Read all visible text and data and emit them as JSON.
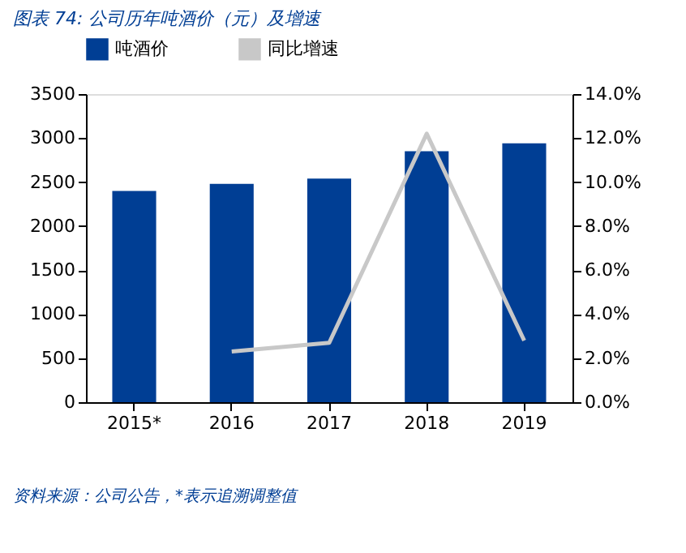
{
  "chart_data": {
    "type": "bar",
    "title": "图表 74: 公司历年吨酒价（元）及增速",
    "categories": [
      "2015*",
      "2016",
      "2017",
      "2018",
      "2019"
    ],
    "series": [
      {
        "name": "吨酒价",
        "color": "#003e94",
        "values": [
          2400,
          2480,
          2540,
          2850,
          2940
        ]
      },
      {
        "name": "同比增速",
        "type": "line",
        "axis": "y2",
        "color": "#c8c8c8",
        "values": [
          null,
          2.3,
          2.7,
          12.2,
          2.8
        ]
      }
    ],
    "ylim": [
      0,
      3500
    ],
    "yticks": [
      0,
      500,
      1000,
      1500,
      2000,
      2500,
      3000,
      3500
    ],
    "y2lim": [
      0,
      14
    ],
    "y2ticks": [
      {
        "value": 0,
        "label": "0.0%"
      },
      {
        "value": 2,
        "label": "2.0%"
      },
      {
        "value": 4,
        "label": "4.0%"
      },
      {
        "value": 6,
        "label": "6.0%"
      },
      {
        "value": 8,
        "label": "8.0%"
      },
      {
        "value": 10,
        "label": "10.0%"
      },
      {
        "value": 12,
        "label": "12.0%"
      },
      {
        "value": 14,
        "label": "14.0%"
      }
    ],
    "legend": "top",
    "grid": false,
    "annotations": [
      "资料来源：公司公告，*表示追溯调整值"
    ]
  }
}
